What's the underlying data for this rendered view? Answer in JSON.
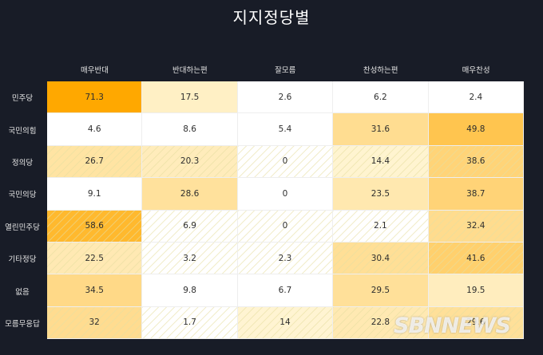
{
  "title": "지지정당별",
  "watermark": "SBNNEWS",
  "colors": {
    "background": "#181c27",
    "cell_base": "#ffffff",
    "heat_max": "#ffa800",
    "hatch": "#e6dea0"
  },
  "chart_data": {
    "type": "heatmap",
    "title": "지지정당별",
    "columns": [
      "매우반대",
      "반대하는편",
      "잘모름",
      "찬성하는편",
      "매우찬성"
    ],
    "rows": [
      "민주당",
      "국민의힘",
      "정의당",
      "국민의당",
      "열린민주당",
      "기타정당",
      "없음",
      "모름무응답"
    ],
    "hatched_rows": [
      "정의당",
      "열린민주당",
      "기타정당",
      "모름무응답"
    ],
    "values": [
      [
        71.3,
        17.5,
        2.6,
        6.2,
        2.4
      ],
      [
        4.6,
        8.6,
        5.4,
        31.6,
        49.8
      ],
      [
        26.7,
        20.3,
        0,
        14.4,
        38.6
      ],
      [
        9.1,
        28.6,
        0,
        23.5,
        38.7
      ],
      [
        58.6,
        6.9,
        0,
        2.1,
        32.4
      ],
      [
        22.5,
        3.2,
        2.3,
        30.4,
        41.6
      ],
      [
        34.5,
        9.8,
        6.7,
        29.5,
        19.5
      ],
      [
        32,
        1.7,
        14,
        22.8,
        29.6
      ]
    ],
    "value_labels": [
      [
        "71.3",
        "17.5",
        "2.6",
        "6.2",
        "2.4"
      ],
      [
        "4.6",
        "8.6",
        "5.4",
        "31.6",
        "49.8"
      ],
      [
        "26.7",
        "20.3",
        "0",
        "14.4",
        "38.6"
      ],
      [
        "9.1",
        "28.6",
        "0",
        "23.5",
        "38.7"
      ],
      [
        "58.6",
        "6.9",
        "0",
        "2.1",
        "32.4"
      ],
      [
        "22.5",
        "3.2",
        "2.3",
        "30.4",
        "41.6"
      ],
      [
        "34.5",
        "9.8",
        "6.7",
        "29.5",
        "19.5"
      ],
      [
        "32",
        "1.7",
        "14",
        "22.8",
        "29.6"
      ]
    ]
  }
}
